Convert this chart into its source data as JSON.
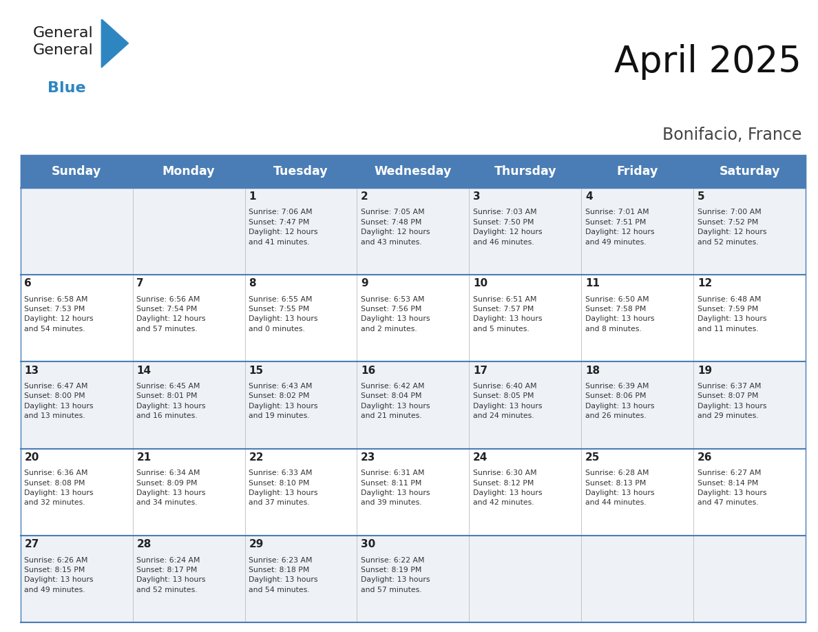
{
  "title": "April 2025",
  "subtitle": "Bonifacio, France",
  "days_of_week": [
    "Sunday",
    "Monday",
    "Tuesday",
    "Wednesday",
    "Thursday",
    "Friday",
    "Saturday"
  ],
  "header_bg": "#4a7db5",
  "header_text": "#ffffff",
  "row_bg_even": "#eef2f7",
  "row_bg_odd": "#ffffff",
  "border_color": "#4a7db5",
  "day_num_color": "#222222",
  "info_color": "#333333",
  "weeks": [
    [
      {
        "day": null,
        "info": null
      },
      {
        "day": null,
        "info": null
      },
      {
        "day": "1",
        "info": "Sunrise: 7:06 AM\nSunset: 7:47 PM\nDaylight: 12 hours\nand 41 minutes."
      },
      {
        "day": "2",
        "info": "Sunrise: 7:05 AM\nSunset: 7:48 PM\nDaylight: 12 hours\nand 43 minutes."
      },
      {
        "day": "3",
        "info": "Sunrise: 7:03 AM\nSunset: 7:50 PM\nDaylight: 12 hours\nand 46 minutes."
      },
      {
        "day": "4",
        "info": "Sunrise: 7:01 AM\nSunset: 7:51 PM\nDaylight: 12 hours\nand 49 minutes."
      },
      {
        "day": "5",
        "info": "Sunrise: 7:00 AM\nSunset: 7:52 PM\nDaylight: 12 hours\nand 52 minutes."
      }
    ],
    [
      {
        "day": "6",
        "info": "Sunrise: 6:58 AM\nSunset: 7:53 PM\nDaylight: 12 hours\nand 54 minutes."
      },
      {
        "day": "7",
        "info": "Sunrise: 6:56 AM\nSunset: 7:54 PM\nDaylight: 12 hours\nand 57 minutes."
      },
      {
        "day": "8",
        "info": "Sunrise: 6:55 AM\nSunset: 7:55 PM\nDaylight: 13 hours\nand 0 minutes."
      },
      {
        "day": "9",
        "info": "Sunrise: 6:53 AM\nSunset: 7:56 PM\nDaylight: 13 hours\nand 2 minutes."
      },
      {
        "day": "10",
        "info": "Sunrise: 6:51 AM\nSunset: 7:57 PM\nDaylight: 13 hours\nand 5 minutes."
      },
      {
        "day": "11",
        "info": "Sunrise: 6:50 AM\nSunset: 7:58 PM\nDaylight: 13 hours\nand 8 minutes."
      },
      {
        "day": "12",
        "info": "Sunrise: 6:48 AM\nSunset: 7:59 PM\nDaylight: 13 hours\nand 11 minutes."
      }
    ],
    [
      {
        "day": "13",
        "info": "Sunrise: 6:47 AM\nSunset: 8:00 PM\nDaylight: 13 hours\nand 13 minutes."
      },
      {
        "day": "14",
        "info": "Sunrise: 6:45 AM\nSunset: 8:01 PM\nDaylight: 13 hours\nand 16 minutes."
      },
      {
        "day": "15",
        "info": "Sunrise: 6:43 AM\nSunset: 8:02 PM\nDaylight: 13 hours\nand 19 minutes."
      },
      {
        "day": "16",
        "info": "Sunrise: 6:42 AM\nSunset: 8:04 PM\nDaylight: 13 hours\nand 21 minutes."
      },
      {
        "day": "17",
        "info": "Sunrise: 6:40 AM\nSunset: 8:05 PM\nDaylight: 13 hours\nand 24 minutes."
      },
      {
        "day": "18",
        "info": "Sunrise: 6:39 AM\nSunset: 8:06 PM\nDaylight: 13 hours\nand 26 minutes."
      },
      {
        "day": "19",
        "info": "Sunrise: 6:37 AM\nSunset: 8:07 PM\nDaylight: 13 hours\nand 29 minutes."
      }
    ],
    [
      {
        "day": "20",
        "info": "Sunrise: 6:36 AM\nSunset: 8:08 PM\nDaylight: 13 hours\nand 32 minutes."
      },
      {
        "day": "21",
        "info": "Sunrise: 6:34 AM\nSunset: 8:09 PM\nDaylight: 13 hours\nand 34 minutes."
      },
      {
        "day": "22",
        "info": "Sunrise: 6:33 AM\nSunset: 8:10 PM\nDaylight: 13 hours\nand 37 minutes."
      },
      {
        "day": "23",
        "info": "Sunrise: 6:31 AM\nSunset: 8:11 PM\nDaylight: 13 hours\nand 39 minutes."
      },
      {
        "day": "24",
        "info": "Sunrise: 6:30 AM\nSunset: 8:12 PM\nDaylight: 13 hours\nand 42 minutes."
      },
      {
        "day": "25",
        "info": "Sunrise: 6:28 AM\nSunset: 8:13 PM\nDaylight: 13 hours\nand 44 minutes."
      },
      {
        "day": "26",
        "info": "Sunrise: 6:27 AM\nSunset: 8:14 PM\nDaylight: 13 hours\nand 47 minutes."
      }
    ],
    [
      {
        "day": "27",
        "info": "Sunrise: 6:26 AM\nSunset: 8:15 PM\nDaylight: 13 hours\nand 49 minutes."
      },
      {
        "day": "28",
        "info": "Sunrise: 6:24 AM\nSunset: 8:17 PM\nDaylight: 13 hours\nand 52 minutes."
      },
      {
        "day": "29",
        "info": "Sunrise: 6:23 AM\nSunset: 8:18 PM\nDaylight: 13 hours\nand 54 minutes."
      },
      {
        "day": "30",
        "info": "Sunrise: 6:22 AM\nSunset: 8:19 PM\nDaylight: 13 hours\nand 57 minutes."
      },
      {
        "day": null,
        "info": null
      },
      {
        "day": null,
        "info": null
      },
      {
        "day": null,
        "info": null
      }
    ]
  ],
  "logo_general_color": "#1a1a1a",
  "logo_blue_color": "#2e86c1",
  "logo_triangle_color": "#2e86c1"
}
